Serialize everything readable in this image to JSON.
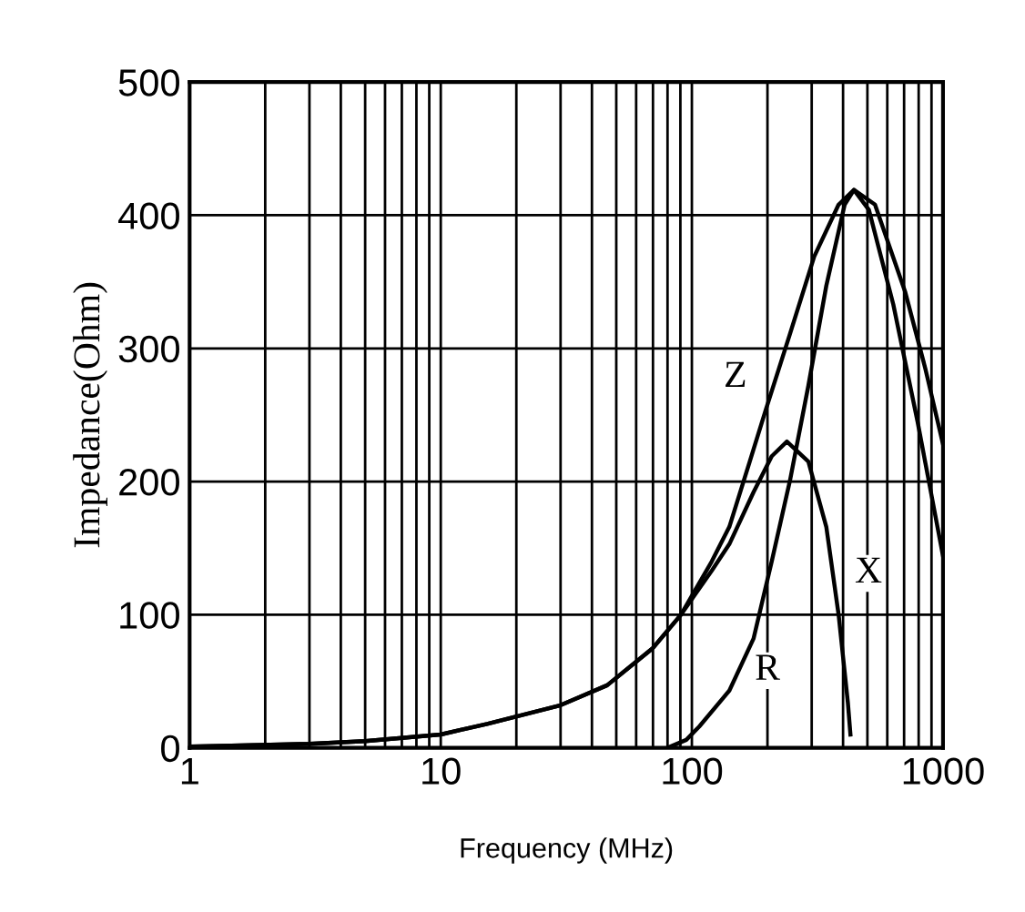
{
  "chart_data": {
    "type": "line",
    "xlabel": "Frequency (MHz)",
    "ylabel": "Impedance(Ohm)",
    "log": "x",
    "grid": true,
    "marker": "none",
    "line_style": "solid",
    "xlim": [
      1,
      1000
    ],
    "xticks": [
      1,
      {
        "value": 2,
        "label": null
      },
      {
        "value": 3,
        "label": null
      },
      {
        "value": 4,
        "label": null
      },
      {
        "value": 5,
        "label": null
      },
      {
        "value": 6,
        "label": null
      },
      {
        "value": 7,
        "label": null
      },
      {
        "value": 8,
        "label": null
      },
      {
        "value": 9,
        "label": null
      },
      10,
      {
        "value": 20,
        "label": null
      },
      {
        "value": 30,
        "label": null
      },
      {
        "value": 40,
        "label": null
      },
      {
        "value": 50,
        "label": null
      },
      {
        "value": 60,
        "label": null
      },
      {
        "value": 70,
        "label": null
      },
      {
        "value": 80,
        "label": null
      },
      {
        "value": 90,
        "label": null
      },
      100,
      {
        "value": 200,
        "label": null
      },
      {
        "value": 300,
        "label": null
      },
      {
        "value": 400,
        "label": null
      },
      {
        "value": 500,
        "label": null
      },
      {
        "value": 600,
        "label": null
      },
      {
        "value": 700,
        "label": null
      },
      {
        "value": 800,
        "label": null
      },
      {
        "value": 900,
        "label": null
      },
      1000
    ],
    "ylim": [
      0,
      500
    ],
    "yticks": [
      0,
      100,
      200,
      300,
      400,
      500
    ],
    "series": [
      {
        "color": "#000000",
        "x": [
          1,
          3,
          5,
          10,
          15.3,
          30,
          46,
          70,
          90.5,
          120,
          141,
          170,
          197,
          246,
          307,
          384,
          442,
          536,
          708,
          850,
          1000
        ],
        "values": [
          1,
          3,
          5,
          10,
          18,
          32,
          47,
          75,
          100,
          140,
          166,
          215,
          254,
          311,
          369,
          408,
          419,
          408,
          342,
          285,
          228
        ]
      },
      {
        "color": "#000000",
        "x": [
          80,
          95,
          107,
          141,
          176,
          208,
          246,
          291,
          343,
          406,
          442,
          507,
          634,
          792,
          1000
        ],
        "values": [
          0,
          6,
          16,
          43,
          82,
          140,
          201,
          272,
          347,
          408,
          419,
          404,
          333,
          245,
          144
        ]
      },
      {
        "color": "#000000",
        "x": [
          1,
          3,
          5,
          10,
          15.3,
          30,
          46,
          70,
          90.5,
          120,
          141,
          176,
          208,
          239,
          291,
          343,
          384,
          418,
          428
        ],
        "values": [
          1,
          3,
          5,
          10,
          18,
          32,
          47,
          75,
          100,
          133,
          153,
          192,
          219,
          230,
          215,
          166,
          100,
          34,
          10
        ]
      }
    ],
    "annotations": [
      {
        "text": "Z",
        "x": 149,
        "y": 278
      },
      {
        "text": "R",
        "x": 200,
        "y": 58
      },
      {
        "text": "X",
        "x": 505,
        "y": 131
      }
    ]
  }
}
